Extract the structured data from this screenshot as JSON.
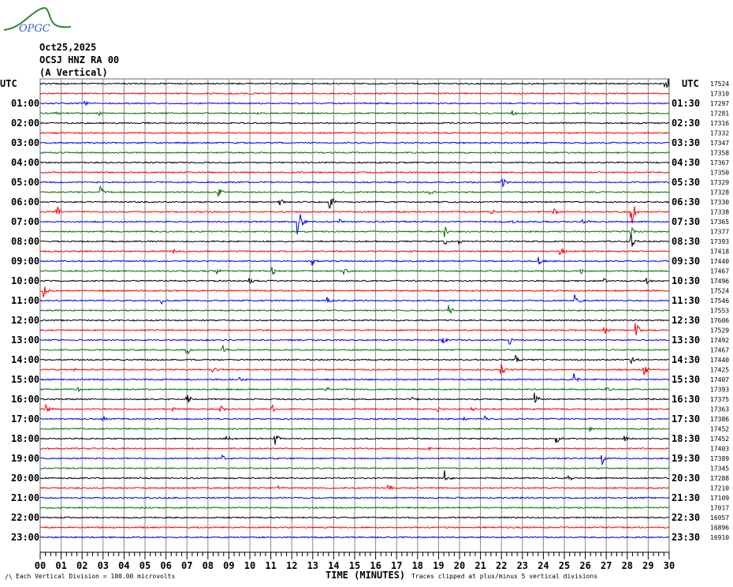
{
  "header": {
    "logo_text": "OPGC",
    "date": "Oct25,2025",
    "station": "OCSJ HNZ RA 00",
    "component": "(A Vertical)"
  },
  "footer": {
    "division_note": "Each Vertical Division =  100.00 microvolts",
    "xlabel": "TIME (MINUTES)",
    "clip_note": "Traces clipped at plus/minus 5 vertical divisions"
  },
  "chart_data": {
    "type": "line",
    "title": "OCSJ HNZ RA 00 (A Vertical) Oct25,2025",
    "xlabel": "TIME (MINUTES)",
    "xlim": [
      0,
      30
    ],
    "x_ticks": [
      "00",
      "01",
      "02",
      "03",
      "04",
      "05",
      "06",
      "07",
      "08",
      "09",
      "10",
      "11",
      "12",
      "13",
      "14",
      "15",
      "16",
      "17",
      "18",
      "19",
      "20",
      "21",
      "22",
      "23",
      "24",
      "25",
      "26",
      "27",
      "28",
      "29",
      "30"
    ],
    "left_labels": [
      "UTC",
      "01:00",
      "02:00",
      "03:00",
      "04:00",
      "05:00",
      "06:00",
      "07:00",
      "08:00",
      "09:00",
      "10:00",
      "11:00",
      "12:00",
      "13:00",
      "14:00",
      "15:00",
      "16:00",
      "17:00",
      "18:00",
      "19:00",
      "20:00",
      "21:00",
      "22:00",
      "23:00"
    ],
    "right_labels": [
      "UTC",
      "01:30",
      "02:30",
      "03:30",
      "04:30",
      "05:30",
      "06:30",
      "07:30",
      "08:30",
      "09:30",
      "10:30",
      "11:30",
      "12:30",
      "13:30",
      "14:30",
      "15:30",
      "16:30",
      "17:30",
      "18:30",
      "19:30",
      "20:30",
      "21:30",
      "22:30",
      "23:30"
    ],
    "trace_colors": [
      "#000000",
      "#ff0000",
      "#0000ff",
      "#007000"
    ],
    "trace_offsets": [
      "17524",
      "17310",
      "17297",
      "17281",
      "17316",
      "17332",
      "17347",
      "17358",
      "17367",
      "17350",
      "17329",
      "17328",
      "17330",
      "17338",
      "17365",
      "17377",
      "17393",
      "17418",
      "17440",
      "17467",
      "17496",
      "17524",
      "17546",
      "17553",
      "17606",
      "17529",
      "17492",
      "17467",
      "17440",
      "17425",
      "17407",
      "17393",
      "17375",
      "17363",
      "17386",
      "17452",
      "17452",
      "17403",
      "17389",
      "17345",
      "17288",
      "17210",
      "17109",
      "17017",
      "16957",
      "16896",
      "16910"
    ],
    "grid": true,
    "events": [
      {
        "trace": 0,
        "minute": 29.8,
        "amp": 5
      },
      {
        "trace": 2,
        "minute": 2.1,
        "amp": 1.5
      },
      {
        "trace": 3,
        "minute": 0.7,
        "amp": 1
      },
      {
        "trace": 3,
        "minute": 2.8,
        "amp": 1.2
      },
      {
        "trace": 3,
        "minute": 22.5,
        "amp": 1.5
      },
      {
        "trace": 10,
        "minute": 22.0,
        "amp": 2
      },
      {
        "trace": 11,
        "minute": 2.9,
        "amp": 2.5
      },
      {
        "trace": 11,
        "minute": 8.5,
        "amp": 1.5
      },
      {
        "trace": 11,
        "minute": 18.6,
        "amp": 1
      },
      {
        "trace": 12,
        "minute": 11.4,
        "amp": 2
      },
      {
        "trace": 12,
        "minute": 13.8,
        "amp": 3
      },
      {
        "trace": 13,
        "minute": 0.8,
        "amp": 2
      },
      {
        "trace": 13,
        "minute": 21.5,
        "amp": 0.8
      },
      {
        "trace": 13,
        "minute": 24.5,
        "amp": 1
      },
      {
        "trace": 13,
        "minute": 28.2,
        "amp": 5
      },
      {
        "trace": 14,
        "minute": 12.3,
        "amp": 5
      },
      {
        "trace": 14,
        "minute": 14.3,
        "amp": 1
      },
      {
        "trace": 14,
        "minute": 22.5,
        "amp": 0.8
      },
      {
        "trace": 14,
        "minute": 25.9,
        "amp": 1.2
      },
      {
        "trace": 15,
        "minute": 19.3,
        "amp": 2
      },
      {
        "trace": 15,
        "minute": 28.2,
        "amp": 1.5
      },
      {
        "trace": 16,
        "minute": 19.3,
        "amp": 1.2
      },
      {
        "trace": 16,
        "minute": 20.0,
        "amp": 1.2
      },
      {
        "trace": 16,
        "minute": 28.2,
        "amp": 2
      },
      {
        "trace": 17,
        "minute": 6.4,
        "amp": 1.2
      },
      {
        "trace": 17,
        "minute": 24.8,
        "amp": 1.5
      },
      {
        "trace": 18,
        "minute": 13.0,
        "amp": 2
      },
      {
        "trace": 18,
        "minute": 23.8,
        "amp": 1.5
      },
      {
        "trace": 19,
        "minute": 8.4,
        "amp": 1
      },
      {
        "trace": 19,
        "minute": 11.1,
        "amp": 1.5
      },
      {
        "trace": 19,
        "minute": 14.5,
        "amp": 1.5
      },
      {
        "trace": 19,
        "minute": 25.8,
        "amp": 1
      },
      {
        "trace": 20,
        "minute": 10.0,
        "amp": 1.5
      },
      {
        "trace": 20,
        "minute": 26.9,
        "amp": 1
      },
      {
        "trace": 20,
        "minute": 28.9,
        "amp": 2
      },
      {
        "trace": 21,
        "minute": 0.2,
        "amp": 2
      },
      {
        "trace": 22,
        "minute": 5.8,
        "amp": 1.5
      },
      {
        "trace": 22,
        "minute": 13.7,
        "amp": 1
      },
      {
        "trace": 22,
        "minute": 25.5,
        "amp": 2
      },
      {
        "trace": 23,
        "minute": 19.5,
        "amp": 2
      },
      {
        "trace": 25,
        "minute": 26.9,
        "amp": 1.5
      },
      {
        "trace": 25,
        "minute": 28.4,
        "amp": 3
      },
      {
        "trace": 26,
        "minute": 19.2,
        "amp": 2
      },
      {
        "trace": 26,
        "minute": 22.4,
        "amp": 2
      },
      {
        "trace": 27,
        "minute": 7.0,
        "amp": 2
      },
      {
        "trace": 27,
        "minute": 8.7,
        "amp": 1.5
      },
      {
        "trace": 28,
        "minute": 22.7,
        "amp": 1.5
      },
      {
        "trace": 28,
        "minute": 28.2,
        "amp": 1.5
      },
      {
        "trace": 29,
        "minute": 1.5,
        "amp": 1
      },
      {
        "trace": 29,
        "minute": 8.2,
        "amp": 1.5
      },
      {
        "trace": 29,
        "minute": 22.0,
        "amp": 2
      },
      {
        "trace": 29,
        "minute": 28.8,
        "amp": 2
      },
      {
        "trace": 30,
        "minute": 9.5,
        "amp": 1
      },
      {
        "trace": 30,
        "minute": 25.5,
        "amp": 2
      },
      {
        "trace": 31,
        "minute": 1.8,
        "amp": 1
      },
      {
        "trace": 31,
        "minute": 13.6,
        "amp": 1.2
      },
      {
        "trace": 31,
        "minute": 27.0,
        "amp": 1
      },
      {
        "trace": 32,
        "minute": 7.0,
        "amp": 2
      },
      {
        "trace": 32,
        "minute": 17.7,
        "amp": 1.2
      },
      {
        "trace": 32,
        "minute": 23.6,
        "amp": 2
      },
      {
        "trace": 33,
        "minute": 0.3,
        "amp": 1.5
      },
      {
        "trace": 33,
        "minute": 6.3,
        "amp": 1.5
      },
      {
        "trace": 33,
        "minute": 8.6,
        "amp": 1.5
      },
      {
        "trace": 33,
        "minute": 11.1,
        "amp": 1.5
      },
      {
        "trace": 33,
        "minute": 18.9,
        "amp": 1.5
      },
      {
        "trace": 33,
        "minute": 20.6,
        "amp": 1.5
      },
      {
        "trace": 34,
        "minute": 3.0,
        "amp": 1
      },
      {
        "trace": 34,
        "minute": 20.1,
        "amp": 1
      },
      {
        "trace": 34,
        "minute": 21.2,
        "amp": 1
      },
      {
        "trace": 35,
        "minute": 26.2,
        "amp": 1
      },
      {
        "trace": 36,
        "minute": 8.9,
        "amp": 1
      },
      {
        "trace": 36,
        "minute": 11.2,
        "amp": 2
      },
      {
        "trace": 36,
        "minute": 24.6,
        "amp": 2
      },
      {
        "trace": 36,
        "minute": 27.9,
        "amp": 1
      },
      {
        "trace": 37,
        "minute": 18.4,
        "amp": 1.5
      },
      {
        "trace": 38,
        "minute": 8.7,
        "amp": 1.5
      },
      {
        "trace": 38,
        "minute": 26.8,
        "amp": 2
      },
      {
        "trace": 40,
        "minute": 8.9,
        "amp": 1
      },
      {
        "trace": 40,
        "minute": 19.3,
        "amp": 3
      },
      {
        "trace": 40,
        "minute": 25.2,
        "amp": 1
      },
      {
        "trace": 41,
        "minute": 11.4,
        "amp": 1
      },
      {
        "trace": 41,
        "minute": 16.6,
        "amp": 1.2
      }
    ]
  }
}
